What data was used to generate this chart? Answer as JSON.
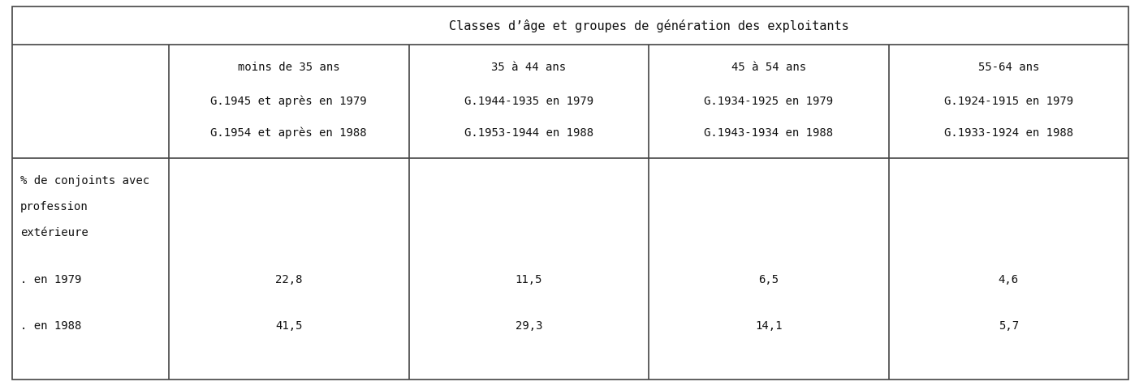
{
  "title_row": "Classes d’âge et groupes de génération des exploitants",
  "col_headers": [
    [
      "moins de 35 ans",
      "G.1945 et après en 1979",
      "G.1954 et après en 1988"
    ],
    [
      "35 à 44 ans",
      "G.1944-1935 en 1979",
      "G.1953-1944 en 1988"
    ],
    [
      "45 à 54 ans",
      "G.1934-1925 en 1979",
      "G.1943-1934 en 1988"
    ],
    [
      "55-64 ans",
      "G.1924-1915 en 1979",
      "G.1933-1924 en 1988"
    ]
  ],
  "row_label_lines": [
    "% de conjoints avec",
    "profession",
    "extérieure",
    ". en 1979",
    ". en 1988"
  ],
  "values_1979": [
    "22,8",
    "11,5",
    "6,5",
    "4,6"
  ],
  "values_1988": [
    "41,5",
    "29,3",
    "14,1",
    "5,7"
  ],
  "bg_color": "#ffffff",
  "line_color": "#444444",
  "text_color": "#111111",
  "font_size": 10,
  "header_font_size": 10,
  "title_font_size": 11
}
